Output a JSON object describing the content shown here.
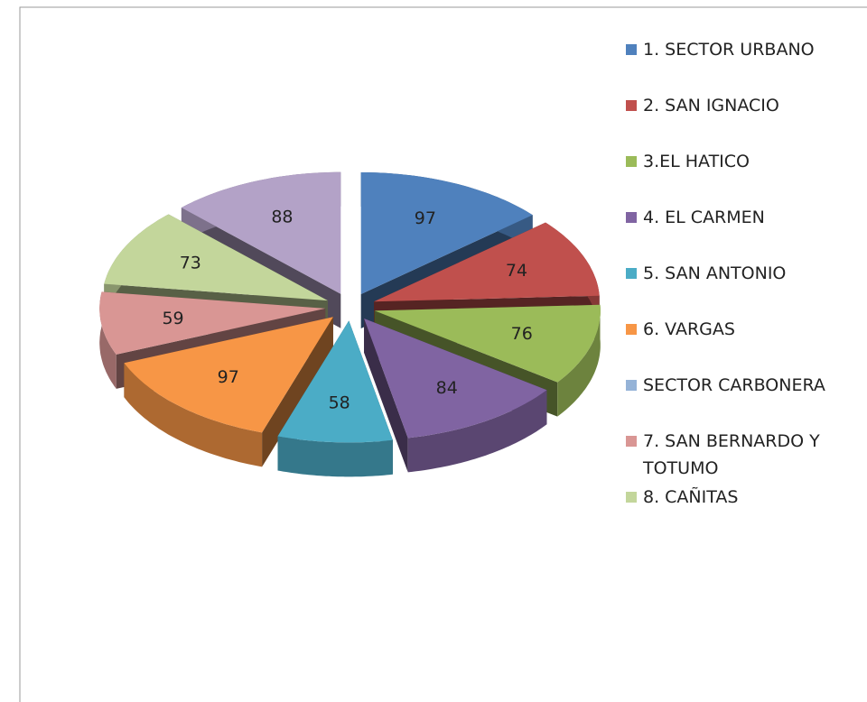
{
  "chart_data": {
    "type": "pie",
    "categories": [
      "1. SECTOR URBANO",
      "2. SAN IGNACIO",
      "3.EL HATICO",
      "4. EL CARMEN",
      "5. SAN ANTONIO",
      "6. VARGAS",
      "SECTOR CARBONERA",
      "7. SAN BERNARDO Y TOTUMO",
      "8. CAÑITAS",
      null
    ],
    "values": [
      97,
      74,
      76,
      84,
      58,
      97,
      null,
      59,
      73,
      88
    ],
    "colors": [
      "#4f81bd",
      "#c0504d",
      "#9bbb59",
      "#8064a2",
      "#4bacc6",
      "#f79646",
      "#95b3d7",
      "#d99694",
      "#c3d69b",
      "#b3a2c7"
    ],
    "legend": "right"
  }
}
